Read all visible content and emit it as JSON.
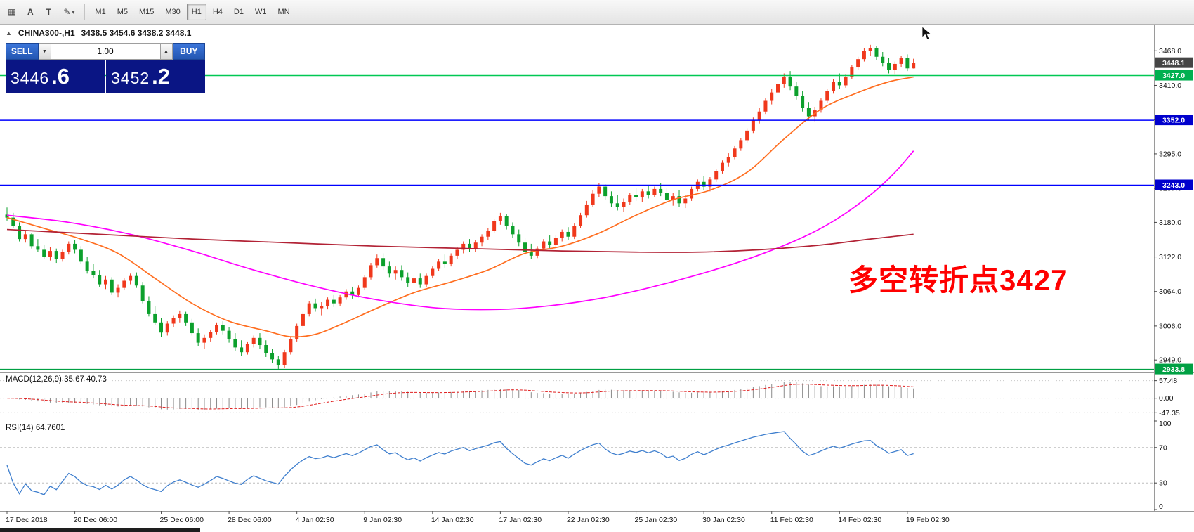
{
  "toolbar": {
    "tool_icons": [
      {
        "name": "chart-list-icon",
        "glyph": "▦"
      },
      {
        "name": "arrow-tool-icon",
        "glyph": "A"
      },
      {
        "name": "text-tool-icon",
        "glyph": "T"
      },
      {
        "name": "drawing-tools-icon",
        "glyph": "✎",
        "caret": "▾"
      }
    ],
    "timeframes": [
      "M1",
      "M5",
      "M15",
      "M30",
      "H1",
      "H4",
      "D1",
      "W1",
      "MN"
    ],
    "active_timeframe": "H1"
  },
  "chart_header": {
    "collapse_glyph": "▲",
    "symbol_period": "CHINA300-,H1",
    "ohlc": "3438.5 3454.6 3438.2 3448.1"
  },
  "trade_panel": {
    "sell_label": "SELL",
    "buy_label": "BUY",
    "volume": "1.00",
    "volume_down_glyph": "▼",
    "volume_up_glyph": "▲",
    "sell_price_main": "3446",
    "sell_price_fraction": ".6",
    "buy_price_main": "3452",
    "buy_price_fraction": ".2"
  },
  "annotation": {
    "text": "多空转折点3427",
    "color": "#ff0000"
  },
  "price_axis": {
    "ticks": [
      "3468.0",
      "3410.0",
      "3352.0",
      "3295.0",
      "3237.0",
      "3180.0",
      "3122.0",
      "3064.0",
      "3006.0",
      "2949.0"
    ],
    "badges": [
      {
        "value": "3448.1",
        "bg": "#454545",
        "fg": "#ffffff"
      },
      {
        "value": "3427.0",
        "bg": "#00b050",
        "fg": "#ffffff"
      },
      {
        "value": "3352.0",
        "bg": "#0000cd",
        "fg": "#ffffff"
      },
      {
        "value": "3243.0",
        "bg": "#0000cd",
        "fg": "#ffffff"
      },
      {
        "value": "2933.8",
        "bg": "#00a043",
        "fg": "#ffffff"
      }
    ]
  },
  "hlines": [
    {
      "price": 3427.0,
      "color": "#00c853"
    },
    {
      "price": 3352.0,
      "color": "#0000ff"
    },
    {
      "price": 3243.0,
      "color": "#0000ff"
    },
    {
      "price": 2933.8,
      "color": "#00a043"
    }
  ],
  "indicators": {
    "macd": {
      "label": "MACD(12,26,9)",
      "values": "35.67 40.73",
      "axis": [
        "57.48",
        "0.00",
        "-47.35"
      ]
    },
    "rsi": {
      "label": "RSI(14)",
      "value": "64.7601",
      "axis": [
        "100",
        "70",
        "30",
        "0"
      ],
      "levels": [
        70,
        30
      ]
    }
  },
  "chart_data": {
    "type": "candlestick",
    "symbol": "CHINA300-",
    "timeframe": "H1",
    "bull_color": "#f0381c",
    "bear_color": "#0ca02c",
    "price_range": [
      2928,
      3512
    ],
    "candles": [
      [
        3193,
        3205,
        3183,
        3188
      ],
      [
        3188,
        3196,
        3170,
        3174
      ],
      [
        3174,
        3180,
        3148,
        3152
      ],
      [
        3152,
        3166,
        3146,
        3160
      ],
      [
        3160,
        3162,
        3136,
        3140
      ],
      [
        3140,
        3152,
        3130,
        3134
      ],
      [
        3134,
        3142,
        3118,
        3122
      ],
      [
        3122,
        3138,
        3116,
        3132
      ],
      [
        3132,
        3136,
        3112,
        3118
      ],
      [
        3118,
        3134,
        3114,
        3130
      ],
      [
        3130,
        3148,
        3126,
        3144
      ],
      [
        3144,
        3150,
        3128,
        3134
      ],
      [
        3134,
        3140,
        3110,
        3114
      ],
      [
        3114,
        3122,
        3094,
        3098
      ],
      [
        3098,
        3110,
        3086,
        3092
      ],
      [
        3092,
        3100,
        3072,
        3076
      ],
      [
        3076,
        3090,
        3068,
        3084
      ],
      [
        3084,
        3088,
        3058,
        3062
      ],
      [
        3062,
        3076,
        3054,
        3070
      ],
      [
        3070,
        3086,
        3066,
        3082
      ],
      [
        3082,
        3094,
        3076,
        3090
      ],
      [
        3090,
        3096,
        3070,
        3074
      ],
      [
        3074,
        3080,
        3044,
        3048
      ],
      [
        3048,
        3056,
        3022,
        3026
      ],
      [
        3026,
        3040,
        3008,
        3012
      ],
      [
        3012,
        3020,
        2988,
        2995
      ],
      [
        2995,
        3014,
        2990,
        3010
      ],
      [
        3010,
        3024,
        3004,
        3020
      ],
      [
        3020,
        3032,
        3012,
        3026
      ],
      [
        3026,
        3030,
        3006,
        3012
      ],
      [
        3012,
        3018,
        2990,
        2994
      ],
      [
        2994,
        3002,
        2972,
        2978
      ],
      [
        2978,
        2992,
        2968,
        2986
      ],
      [
        2986,
        3000,
        2980,
        2996
      ],
      [
        2996,
        3012,
        2992,
        3008
      ],
      [
        3008,
        3014,
        2992,
        2998
      ],
      [
        2998,
        3004,
        2978,
        2984
      ],
      [
        2984,
        2994,
        2964,
        2970
      ],
      [
        2970,
        2982,
        2956,
        2962
      ],
      [
        2962,
        2980,
        2958,
        2976
      ],
      [
        2976,
        2990,
        2970,
        2986
      ],
      [
        2986,
        2994,
        2968,
        2974
      ],
      [
        2974,
        2982,
        2954,
        2960
      ],
      [
        2960,
        2968,
        2944,
        2950
      ],
      [
        2950,
        2956,
        2934,
        2940
      ],
      [
        2940,
        2966,
        2936,
        2962
      ],
      [
        2962,
        2988,
        2958,
        2984
      ],
      [
        2984,
        3010,
        2980,
        3006
      ],
      [
        3006,
        3030,
        3002,
        3026
      ],
      [
        3026,
        3048,
        3022,
        3044
      ],
      [
        3044,
        3052,
        3030,
        3036
      ],
      [
        3036,
        3046,
        3024,
        3040
      ],
      [
        3040,
        3054,
        3034,
        3050
      ],
      [
        3050,
        3058,
        3038,
        3044
      ],
      [
        3044,
        3058,
        3040,
        3054
      ],
      [
        3054,
        3068,
        3050,
        3064
      ],
      [
        3064,
        3072,
        3052,
        3058
      ],
      [
        3058,
        3074,
        3054,
        3070
      ],
      [
        3070,
        3092,
        3066,
        3088
      ],
      [
        3088,
        3112,
        3084,
        3108
      ],
      [
        3108,
        3126,
        3104,
        3120
      ],
      [
        3120,
        3128,
        3100,
        3106
      ],
      [
        3106,
        3114,
        3088,
        3094
      ],
      [
        3094,
        3106,
        3084,
        3100
      ],
      [
        3100,
        3108,
        3082,
        3088
      ],
      [
        3088,
        3096,
        3072,
        3078
      ],
      [
        3078,
        3092,
        3074,
        3086
      ],
      [
        3086,
        3094,
        3070,
        3076
      ],
      [
        3076,
        3094,
        3072,
        3090
      ],
      [
        3090,
        3106,
        3086,
        3102
      ],
      [
        3102,
        3118,
        3098,
        3114
      ],
      [
        3114,
        3126,
        3104,
        3110
      ],
      [
        3110,
        3128,
        3106,
        3124
      ],
      [
        3124,
        3138,
        3118,
        3134
      ],
      [
        3134,
        3148,
        3128,
        3144
      ],
      [
        3144,
        3152,
        3130,
        3136
      ],
      [
        3136,
        3150,
        3130,
        3146
      ],
      [
        3146,
        3160,
        3140,
        3156
      ],
      [
        3156,
        3170,
        3150,
        3166
      ],
      [
        3166,
        3186,
        3162,
        3182
      ],
      [
        3182,
        3196,
        3176,
        3190
      ],
      [
        3190,
        3194,
        3168,
        3174
      ],
      [
        3174,
        3180,
        3154,
        3160
      ],
      [
        3160,
        3168,
        3140,
        3146
      ],
      [
        3146,
        3154,
        3124,
        3130
      ],
      [
        3130,
        3144,
        3118,
        3124
      ],
      [
        3124,
        3140,
        3120,
        3136
      ],
      [
        3136,
        3152,
        3132,
        3148
      ],
      [
        3148,
        3158,
        3136,
        3142
      ],
      [
        3142,
        3158,
        3138,
        3154
      ],
      [
        3154,
        3168,
        3148,
        3164
      ],
      [
        3164,
        3172,
        3150,
        3156
      ],
      [
        3156,
        3178,
        3152,
        3174
      ],
      [
        3174,
        3196,
        3170,
        3192
      ],
      [
        3192,
        3216,
        3188,
        3210
      ],
      [
        3210,
        3234,
        3206,
        3228
      ],
      [
        3228,
        3246,
        3222,
        3240
      ],
      [
        3240,
        3244,
        3218,
        3224
      ],
      [
        3224,
        3232,
        3206,
        3212
      ],
      [
        3212,
        3226,
        3200,
        3206
      ],
      [
        3206,
        3220,
        3198,
        3214
      ],
      [
        3214,
        3230,
        3210,
        3226
      ],
      [
        3226,
        3238,
        3216,
        3222
      ],
      [
        3222,
        3236,
        3214,
        3232
      ],
      [
        3232,
        3242,
        3220,
        3226
      ],
      [
        3226,
        3240,
        3222,
        3236
      ],
      [
        3236,
        3246,
        3224,
        3230
      ],
      [
        3230,
        3238,
        3212,
        3218
      ],
      [
        3218,
        3230,
        3208,
        3224
      ],
      [
        3224,
        3234,
        3206,
        3212
      ],
      [
        3212,
        3226,
        3204,
        3220
      ],
      [
        3220,
        3240,
        3216,
        3236
      ],
      [
        3236,
        3252,
        3232,
        3248
      ],
      [
        3248,
        3258,
        3234,
        3240
      ],
      [
        3240,
        3256,
        3232,
        3252
      ],
      [
        3252,
        3270,
        3248,
        3266
      ],
      [
        3266,
        3284,
        3262,
        3280
      ],
      [
        3280,
        3296,
        3274,
        3290
      ],
      [
        3290,
        3308,
        3286,
        3304
      ],
      [
        3304,
        3322,
        3300,
        3318
      ],
      [
        3318,
        3338,
        3314,
        3334
      ],
      [
        3334,
        3356,
        3330,
        3352
      ],
      [
        3352,
        3372,
        3346,
        3366
      ],
      [
        3366,
        3388,
        3362,
        3384
      ],
      [
        3384,
        3404,
        3378,
        3398
      ],
      [
        3398,
        3418,
        3392,
        3412
      ],
      [
        3412,
        3430,
        3406,
        3424
      ],
      [
        3424,
        3434,
        3402,
        3408
      ],
      [
        3408,
        3416,
        3386,
        3392
      ],
      [
        3392,
        3400,
        3366,
        3372
      ],
      [
        3372,
        3382,
        3352,
        3358
      ],
      [
        3358,
        3374,
        3350,
        3368
      ],
      [
        3368,
        3388,
        3364,
        3384
      ],
      [
        3384,
        3404,
        3380,
        3400
      ],
      [
        3400,
        3420,
        3396,
        3416
      ],
      [
        3416,
        3430,
        3404,
        3410
      ],
      [
        3410,
        3428,
        3406,
        3424
      ],
      [
        3424,
        3444,
        3420,
        3440
      ],
      [
        3440,
        3458,
        3436,
        3454
      ],
      [
        3454,
        3472,
        3450,
        3468
      ],
      [
        3468,
        3478,
        3460,
        3472
      ],
      [
        3472,
        3476,
        3452,
        3458
      ],
      [
        3458,
        3466,
        3442,
        3448
      ],
      [
        3448,
        3456,
        3430,
        3436
      ],
      [
        3436,
        3450,
        3428,
        3446
      ],
      [
        3446,
        3460,
        3440,
        3456
      ],
      [
        3456,
        3462,
        3434,
        3438.5
      ],
      [
        3438.5,
        3454.6,
        3438.2,
        3448.1
      ]
    ],
    "ma_lines": [
      {
        "name": "ma-fast-line",
        "color": "#ff6d1f",
        "points": [
          [
            0,
            3188
          ],
          [
            6,
            3170
          ],
          [
            12,
            3152
          ],
          [
            18,
            3128
          ],
          [
            24,
            3086
          ],
          [
            30,
            3044
          ],
          [
            36,
            3014
          ],
          [
            42,
            2998
          ],
          [
            46,
            2988
          ],
          [
            50,
            2992
          ],
          [
            54,
            3008
          ],
          [
            60,
            3036
          ],
          [
            66,
            3062
          ],
          [
            72,
            3080
          ],
          [
            78,
            3100
          ],
          [
            84,
            3128
          ],
          [
            90,
            3140
          ],
          [
            96,
            3162
          ],
          [
            102,
            3192
          ],
          [
            108,
            3218
          ],
          [
            114,
            3234
          ],
          [
            120,
            3264
          ],
          [
            126,
            3320
          ],
          [
            132,
            3370
          ],
          [
            138,
            3398
          ],
          [
            143,
            3416
          ],
          [
            147,
            3424
          ]
        ]
      },
      {
        "name": "ma-medium-line",
        "color": "#ff00ff",
        "points": [
          [
            0,
            3192
          ],
          [
            10,
            3180
          ],
          [
            20,
            3160
          ],
          [
            30,
            3132
          ],
          [
            40,
            3100
          ],
          [
            50,
            3072
          ],
          [
            60,
            3050
          ],
          [
            70,
            3036
          ],
          [
            80,
            3034
          ],
          [
            88,
            3040
          ],
          [
            96,
            3052
          ],
          [
            104,
            3070
          ],
          [
            112,
            3092
          ],
          [
            120,
            3118
          ],
          [
            128,
            3150
          ],
          [
            134,
            3182
          ],
          [
            140,
            3226
          ],
          [
            144,
            3264
          ],
          [
            147,
            3300
          ]
        ]
      },
      {
        "name": "ma-slow-line",
        "color": "#b22235",
        "points": [
          [
            0,
            3168
          ],
          [
            15,
            3160
          ],
          [
            30,
            3152
          ],
          [
            45,
            3146
          ],
          [
            60,
            3140
          ],
          [
            75,
            3136
          ],
          [
            90,
            3132
          ],
          [
            102,
            3130
          ],
          [
            112,
            3130
          ],
          [
            122,
            3134
          ],
          [
            132,
            3142
          ],
          [
            140,
            3152
          ],
          [
            147,
            3160
          ]
        ]
      }
    ],
    "time_labels": [
      {
        "i": 0,
        "t": "17 Dec 2018"
      },
      {
        "i": 11,
        "t": "20 Dec 06:00"
      },
      {
        "i": 25,
        "t": "25 Dec 06:00"
      },
      {
        "i": 36,
        "t": "28 Dec 06:00"
      },
      {
        "i": 47,
        "t": "4 Jan 02:30"
      },
      {
        "i": 58,
        "t": "9 Jan 02:30"
      },
      {
        "i": 69,
        "t": "14 Jan 02:30"
      },
      {
        "i": 80,
        "t": "17 Jan 02:30"
      },
      {
        "i": 91,
        "t": "22 Jan 02:30"
      },
      {
        "i": 102,
        "t": "25 Jan 02:30"
      },
      {
        "i": 113,
        "t": "30 Jan 02:30"
      },
      {
        "i": 124,
        "t": "11 Feb 02:30"
      },
      {
        "i": 135,
        "t": "14 Feb 02:30"
      },
      {
        "i": 146,
        "t": "19 Feb 02:30"
      }
    ]
  }
}
